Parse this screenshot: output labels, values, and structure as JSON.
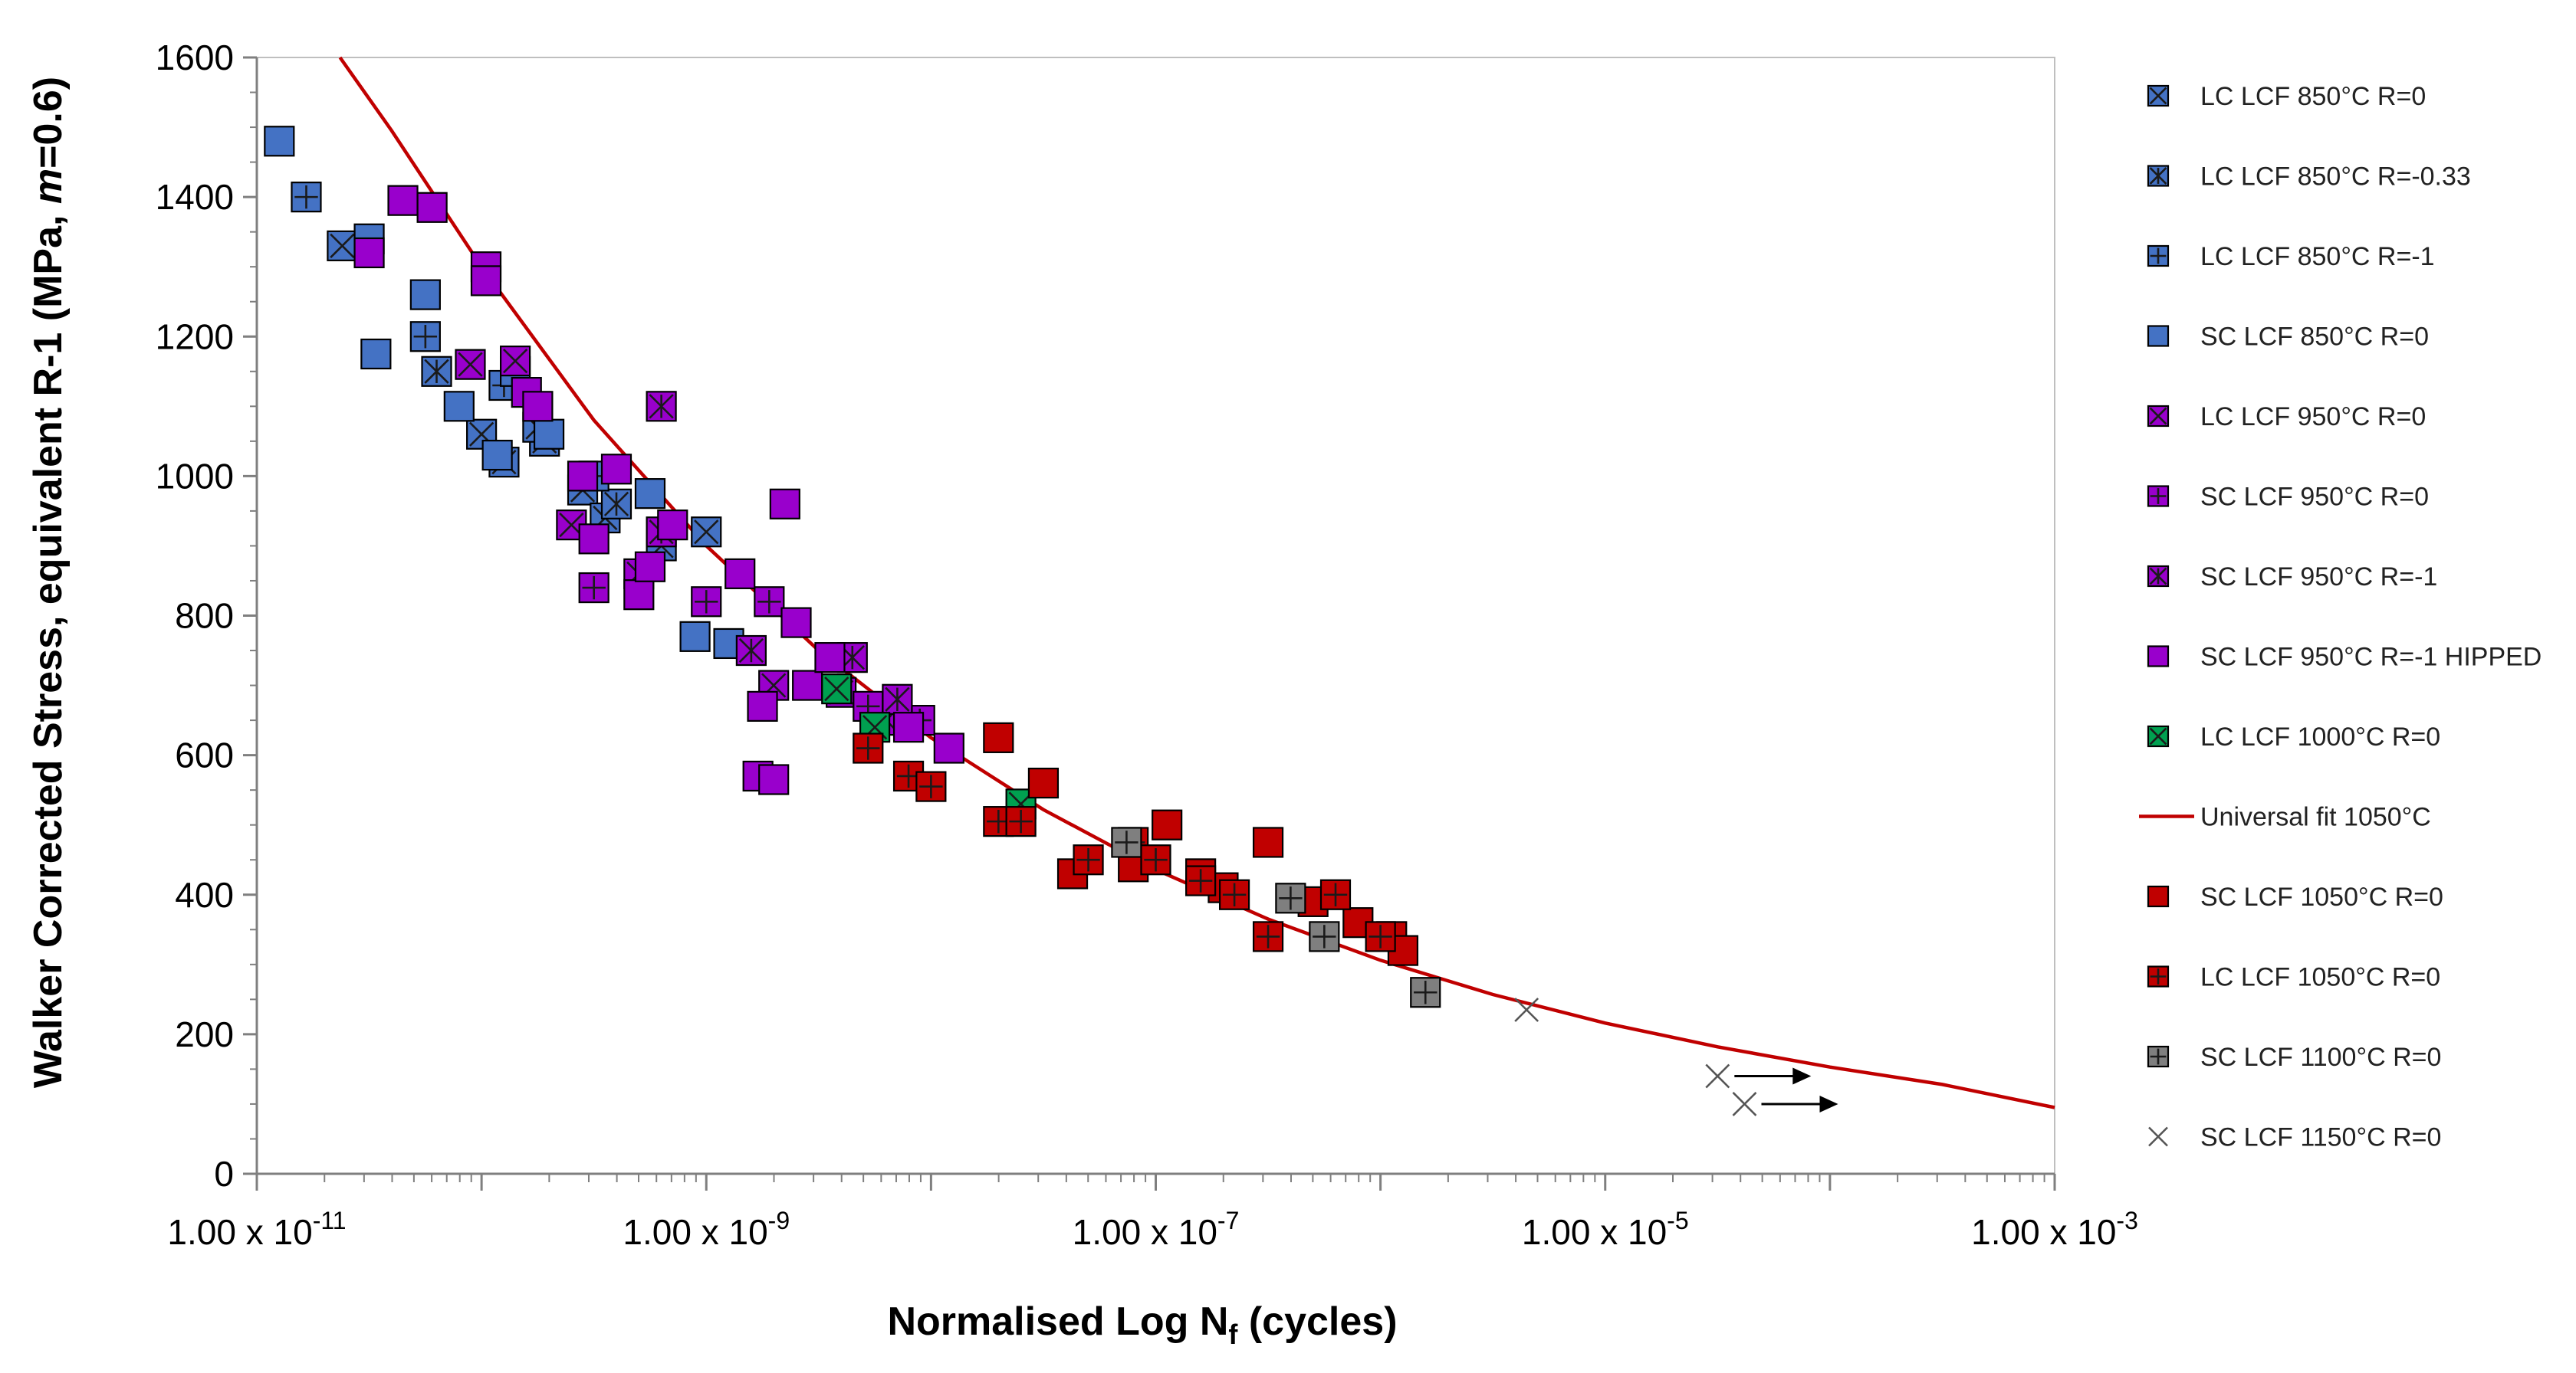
{
  "chart_data": {
    "type": "scatter",
    "title": "",
    "xlabel": "Normalised Log N",
    "xlabel_sub": "f",
    "xlabel_suffix": " (cycles)",
    "ylabel_pre": "Walker Corrected Stress, equivalent R-1 (MPa, ",
    "ylabel_m": "m",
    "ylabel_post": "=0.6)",
    "x_scale": "log",
    "x_log_range": [
      -11,
      -3
    ],
    "ylim": [
      0,
      1600
    ],
    "y_ticks": [
      0,
      200,
      400,
      600,
      800,
      1000,
      1200,
      1400,
      1600
    ],
    "x_tick_labels": [
      {
        "log": -11,
        "base": "1.00 x 10",
        "exp": "-11"
      },
      {
        "log": -9,
        "base": "1.00 x 10",
        "exp": "-9"
      },
      {
        "log": -7,
        "base": "1.00 x 10",
        "exp": "-7"
      },
      {
        "log": -5,
        "base": "1.00 x 10",
        "exp": "-5"
      },
      {
        "log": -3,
        "base": "1.00 x 10",
        "exp": "-3"
      }
    ],
    "legend_position": "right",
    "series": [
      {
        "name": "LC LCF 850°C R=0",
        "marker": "x-square",
        "color": "#4472C4",
        "points": [
          [
            -10.62,
            1330
          ],
          [
            -10.0,
            1060
          ],
          [
            -9.9,
            1020
          ],
          [
            -9.72,
            1050
          ],
          [
            -9.55,
            980
          ],
          [
            -9.45,
            940
          ],
          [
            -9.2,
            900
          ],
          [
            -9.0,
            920
          ]
        ]
      },
      {
        "name": "LC LCF 850°C R=-0.33",
        "marker": "star-square",
        "color": "#4472C4",
        "points": [
          [
            -10.2,
            1150
          ],
          [
            -9.75,
            1070
          ],
          [
            -9.4,
            960
          ]
        ]
      },
      {
        "name": "LC LCF 850°C R=-1",
        "marker": "plus-square",
        "color": "#4472C4",
        "points": [
          [
            -10.78,
            1400
          ],
          [
            -10.25,
            1200
          ],
          [
            -9.9,
            1130
          ],
          [
            -9.5,
            1000
          ]
        ]
      },
      {
        "name": "SC LCF 850°C R=0",
        "marker": "square",
        "color": "#4472C4",
        "points": [
          [
            -10.9,
            1480
          ],
          [
            -10.5,
            1340
          ],
          [
            -10.25,
            1260
          ],
          [
            -10.47,
            1175
          ],
          [
            -10.1,
            1100
          ],
          [
            -9.85,
            1150
          ],
          [
            -9.93,
            1030
          ],
          [
            -9.7,
            1060
          ],
          [
            -9.25,
            975
          ],
          [
            -9.05,
            770
          ],
          [
            -8.9,
            760
          ]
        ]
      },
      {
        "name": "LC LCF 950°C R=0",
        "marker": "x-square",
        "color": "#9900CC",
        "points": [
          [
            -10.05,
            1160
          ],
          [
            -9.85,
            1165
          ],
          [
            -9.6,
            930
          ],
          [
            -9.3,
            860
          ],
          [
            -8.7,
            700
          ],
          [
            -8.4,
            690
          ],
          [
            -8.2,
            650
          ]
        ]
      },
      {
        "name": "SC LCF 950°C R=0",
        "marker": "plus-square",
        "color": "#9900CC",
        "points": [
          [
            -9.5,
            840
          ],
          [
            -9.0,
            820
          ],
          [
            -8.72,
            820
          ],
          [
            -8.28,
            670
          ],
          [
            -8.05,
            650
          ]
        ]
      },
      {
        "name": "SC LCF 950°C R=-1",
        "marker": "star-square",
        "color": "#9900CC",
        "points": [
          [
            -9.2,
            1100
          ],
          [
            -9.2,
            920
          ],
          [
            -8.8,
            750
          ],
          [
            -8.35,
            740
          ],
          [
            -8.15,
            680
          ]
        ]
      },
      {
        "name": "SC LCF 950°C R=-1 HIPPED",
        "marker": "square",
        "color": "#9900CC",
        "points": [
          [
            -10.35,
            1395
          ],
          [
            -10.5,
            1320
          ],
          [
            -10.22,
            1385
          ],
          [
            -9.98,
            1300
          ],
          [
            -9.98,
            1280
          ],
          [
            -9.8,
            1120
          ],
          [
            -9.75,
            1100
          ],
          [
            -9.55,
            1000
          ],
          [
            -9.4,
            1010
          ],
          [
            -9.5,
            910
          ],
          [
            -9.3,
            830
          ],
          [
            -9.25,
            870
          ],
          [
            -9.15,
            930
          ],
          [
            -8.85,
            860
          ],
          [
            -8.65,
            960
          ],
          [
            -8.6,
            790
          ],
          [
            -8.55,
            700
          ],
          [
            -8.45,
            740
          ],
          [
            -8.75,
            670
          ],
          [
            -8.77,
            570
          ],
          [
            -8.7,
            565
          ],
          [
            -8.1,
            640
          ],
          [
            -7.92,
            610
          ]
        ]
      },
      {
        "name": "LC LCF 1000°C R=0",
        "marker": "x-square",
        "color": "#00A050",
        "points": [
          [
            -8.42,
            695
          ],
          [
            -8.25,
            640
          ],
          [
            -7.6,
            530
          ]
        ]
      },
      {
        "name": "SC LCF 1050°C R=0",
        "marker": "square",
        "color": "#C00000",
        "points": [
          [
            -7.7,
            625
          ],
          [
            -7.5,
            560
          ],
          [
            -7.37,
            430
          ],
          [
            -7.1,
            440
          ],
          [
            -6.95,
            500
          ],
          [
            -6.8,
            430
          ],
          [
            -6.7,
            410
          ],
          [
            -6.5,
            475
          ],
          [
            -6.3,
            390
          ],
          [
            -6.1,
            360
          ],
          [
            -5.95,
            340
          ],
          [
            -5.9,
            320
          ]
        ]
      },
      {
        "name": "LC LCF 1050°C R=0",
        "marker": "plus-square",
        "color": "#C00000",
        "points": [
          [
            -8.28,
            610
          ],
          [
            -8.1,
            570
          ],
          [
            -8.0,
            555
          ],
          [
            -7.7,
            505
          ],
          [
            -7.6,
            505
          ],
          [
            -7.3,
            450
          ],
          [
            -7.1,
            475
          ],
          [
            -7.0,
            450
          ],
          [
            -6.8,
            420
          ],
          [
            -6.65,
            400
          ],
          [
            -6.5,
            340
          ],
          [
            -6.2,
            400
          ],
          [
            -6.0,
            340
          ]
        ]
      },
      {
        "name": "SC LCF 1100°C R=0",
        "marker": "plus-square",
        "color": "#7F7F7F",
        "points": [
          [
            -7.13,
            475
          ],
          [
            -6.4,
            395
          ],
          [
            -6.25,
            340
          ],
          [
            -5.8,
            260
          ]
        ]
      },
      {
        "name": "SC LCF 1150°C R=0",
        "marker": "x",
        "color": "#666666",
        "points": [
          [
            -5.35,
            235
          ],
          [
            -4.5,
            140
          ],
          [
            -4.38,
            100
          ]
        ]
      }
    ],
    "runouts": [
      [
        -4.5,
        140
      ],
      [
        -4.38,
        100
      ]
    ],
    "fit": {
      "name": "Universal fit 1050°C",
      "color": "#C00000",
      "type": "line",
      "points": [
        [
          -10.63,
          1600
        ],
        [
          -10.4,
          1495
        ],
        [
          -10.0,
          1300
        ],
        [
          -9.5,
          1080
        ],
        [
          -9.0,
          900
        ],
        [
          -8.5,
          750
        ],
        [
          -8.0,
          625
        ],
        [
          -7.5,
          522
        ],
        [
          -7.0,
          436
        ],
        [
          -6.5,
          365
        ],
        [
          -6.0,
          306
        ],
        [
          -5.5,
          257
        ],
        [
          -5.0,
          216
        ],
        [
          -4.5,
          182
        ],
        [
          -4.0,
          153
        ],
        [
          -3.5,
          128
        ],
        [
          -3.0,
          95
        ]
      ]
    },
    "legend_entries": [
      "LC LCF 850°C R=0",
      "LC LCF 850°C R=-0.33",
      "LC LCF 850°C R=-1",
      "SC LCF 850°C R=0",
      "LC LCF 950°C R=0",
      "SC LCF 950°C R=0",
      "SC LCF 950°C R=-1",
      "SC LCF 950°C R=-1 HIPPED",
      "LC LCF 1000°C R=0",
      "Universal fit 1050°C",
      "SC LCF 1050°C R=0",
      "LC LCF 1050°C R=0",
      "SC LCF 1100°C R=0",
      "SC LCF 1150°C R=0"
    ]
  }
}
